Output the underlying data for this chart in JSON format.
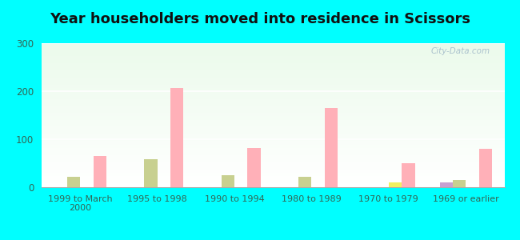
{
  "title": "Year householders moved into residence in Scissors",
  "categories": [
    "1999 to March\n2000",
    "1995 to 1998",
    "1990 to 1994",
    "1980 to 1989",
    "1970 to 1979",
    "1969 or earlier"
  ],
  "series": {
    "White Non-Hispanic": [
      0,
      0,
      0,
      0,
      0,
      10
    ],
    "Other Race": [
      22,
      58,
      25,
      22,
      0,
      15
    ],
    "Two or More Races": [
      0,
      0,
      0,
      0,
      10,
      0
    ],
    "Hispanic or Latino": [
      65,
      207,
      82,
      165,
      50,
      80
    ]
  },
  "colors": {
    "White Non-Hispanic": "#c8a0d0",
    "Other Race": "#c8d090",
    "Two or More Races": "#f0f060",
    "Hispanic or Latino": "#ffb0b8"
  },
  "ylim": [
    0,
    300
  ],
  "yticks": [
    0,
    100,
    200,
    300
  ],
  "background_color": "#00ffff",
  "watermark": "City-Data.com",
  "bar_width": 0.17,
  "legend_fontsize": 8,
  "title_fontsize": 13,
  "tick_color": "#336655",
  "axis_label_color": "#336655"
}
